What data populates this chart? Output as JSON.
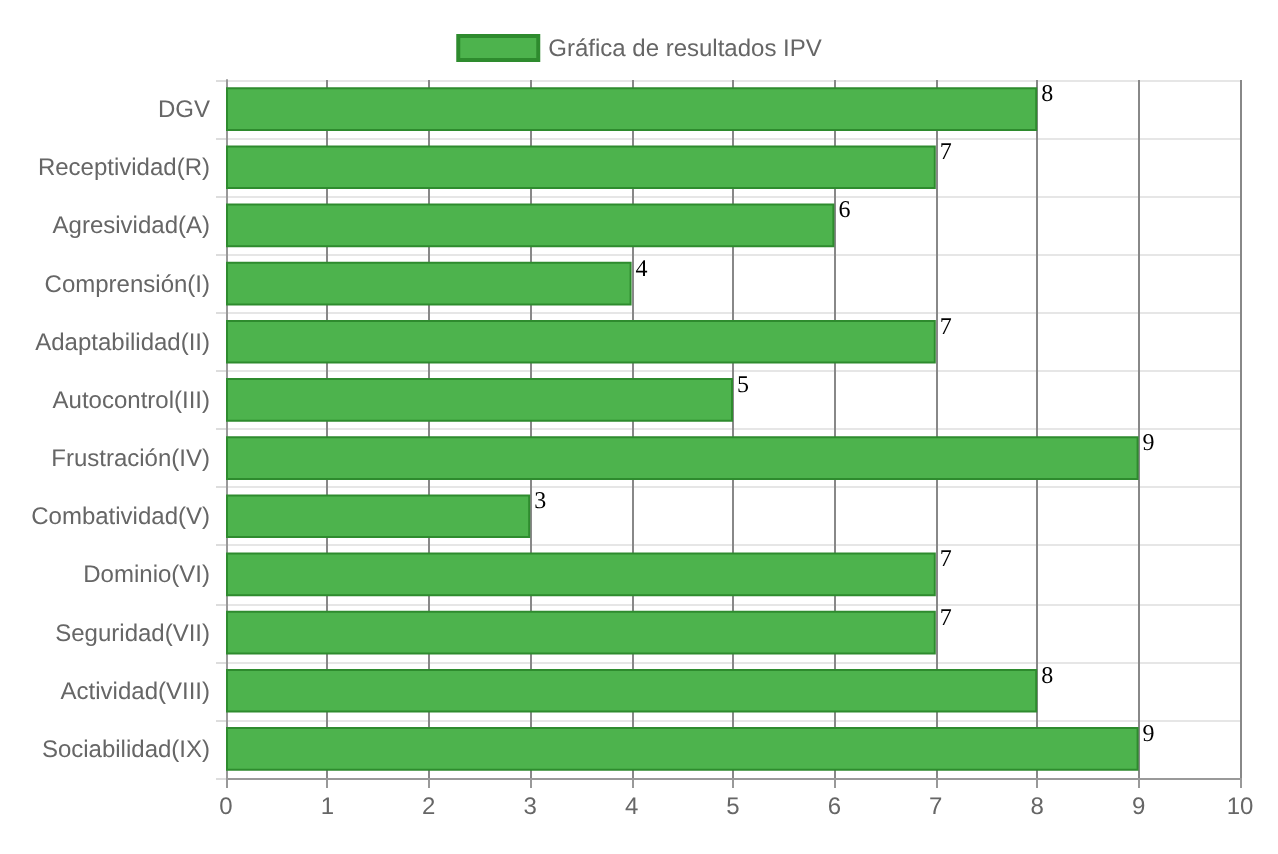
{
  "chart_data": {
    "type": "bar",
    "orientation": "horizontal",
    "categories": [
      "DGV",
      "Receptividad(R)",
      "Agresividad(A)",
      "Comprensión(I)",
      "Adaptabilidad(II)",
      "Autocontrol(III)",
      "Frustración(IV)",
      "Combatividad(V)",
      "Dominio(VI)",
      "Seguridad(VII)",
      "Actividad(VIII)",
      "Sociabilidad(IX)"
    ],
    "series": [
      {
        "name": "Gráfica de resultados IPV",
        "color": "#4db34d",
        "values": [
          8,
          7,
          6,
          4,
          7,
          5,
          9,
          3,
          7,
          7,
          8,
          9
        ]
      }
    ],
    "xlim": [
      0,
      10
    ],
    "xticks": [
      0,
      1,
      2,
      3,
      4,
      5,
      6,
      7,
      8,
      9,
      10
    ],
    "grid": true,
    "legend": "top",
    "data_labels": true
  }
}
